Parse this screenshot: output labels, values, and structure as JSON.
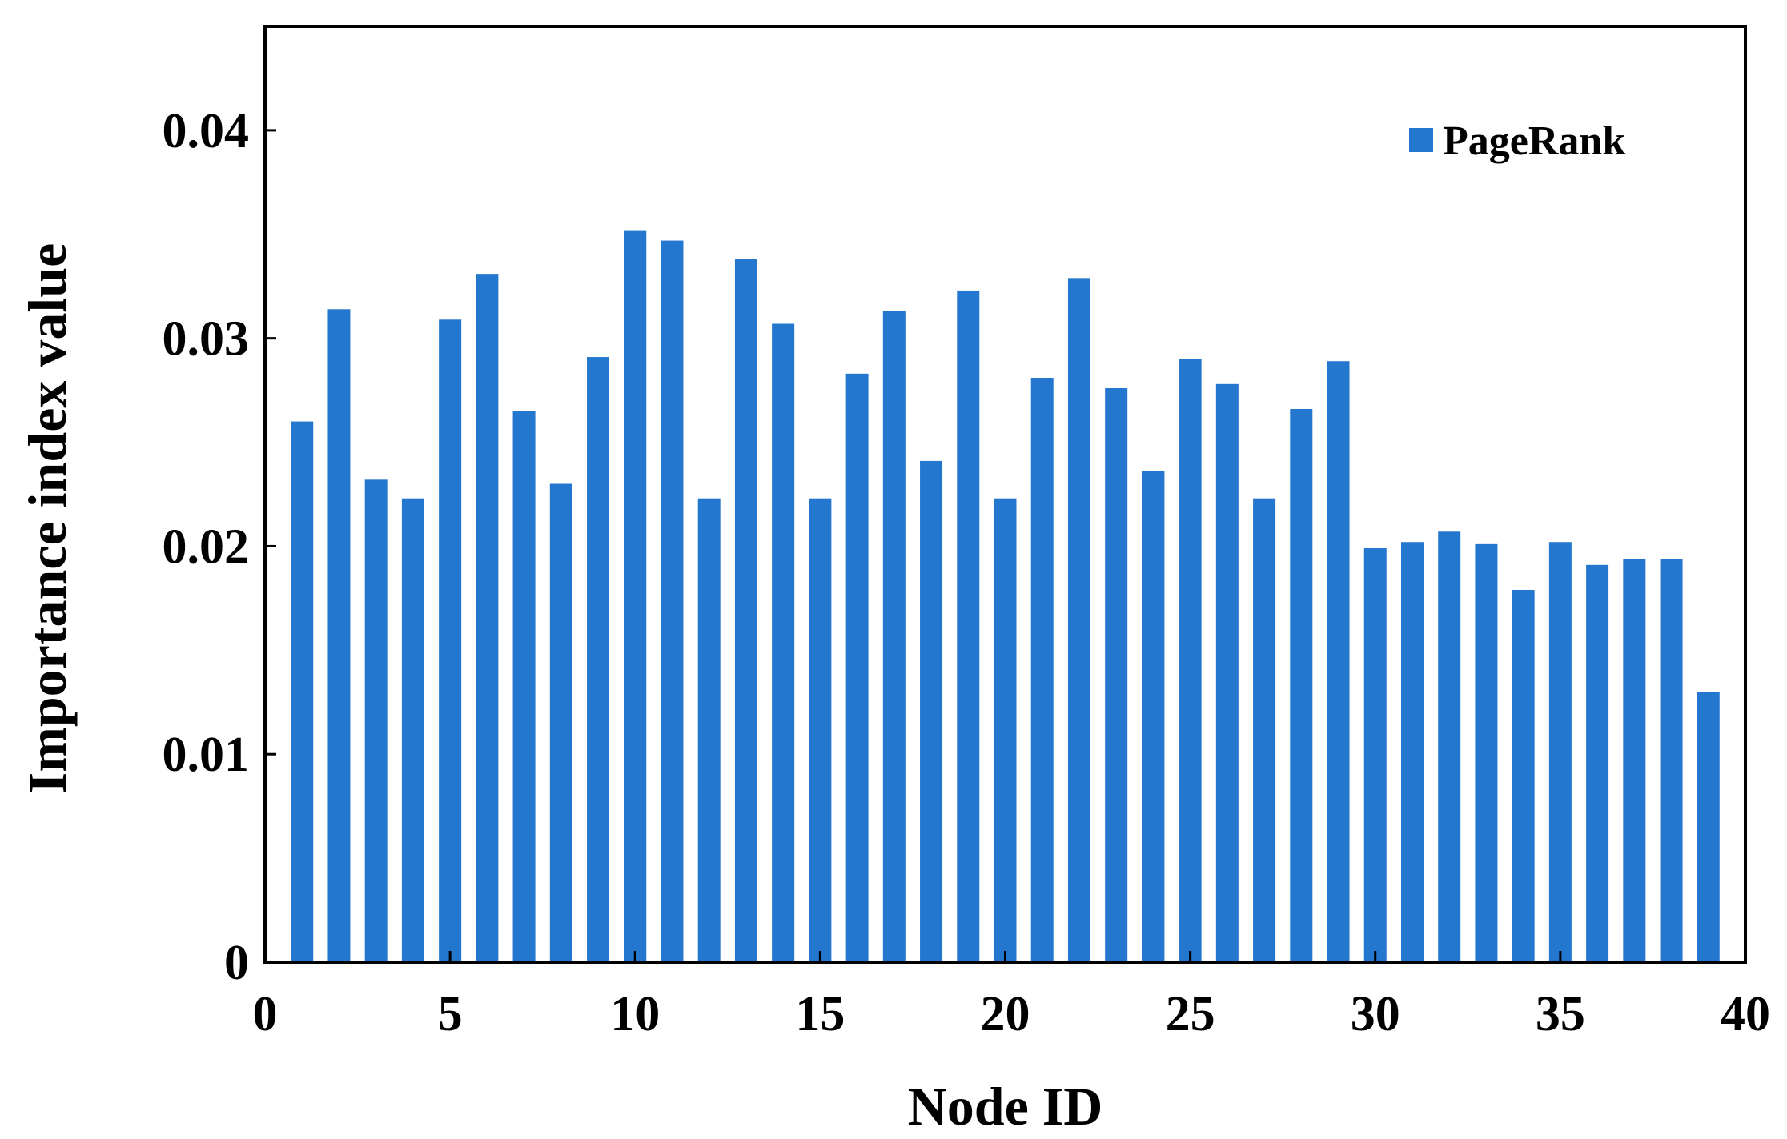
{
  "chart_data": {
    "type": "bar",
    "xlabel": "Node ID",
    "ylabel": "Importance index value",
    "xlim": [
      0,
      40
    ],
    "ylim": [
      0,
      0.045
    ],
    "xticks": [
      0,
      5,
      10,
      15,
      20,
      25,
      30,
      35,
      40
    ],
    "xtick_labels": [
      "0",
      "5",
      "10",
      "15",
      "20",
      "25",
      "30",
      "35",
      "40"
    ],
    "yticks": [
      0,
      0.01,
      0.02,
      0.03,
      0.04
    ],
    "ytick_labels": [
      "0",
      "0.01",
      "0.02",
      "0.03",
      "0.04"
    ],
    "grid": false,
    "legend_position": "top-right",
    "x": [
      1,
      2,
      3,
      4,
      5,
      6,
      7,
      8,
      9,
      10,
      11,
      12,
      13,
      14,
      15,
      16,
      17,
      18,
      19,
      20,
      21,
      22,
      23,
      24,
      25,
      26,
      27,
      28,
      29,
      30,
      31,
      32,
      33,
      34,
      35,
      36,
      37,
      38,
      39
    ],
    "series": [
      {
        "name": "PageRank",
        "color": "#2477CE",
        "values": [
          0.026,
          0.0314,
          0.0232,
          0.0223,
          0.0309,
          0.0331,
          0.0265,
          0.023,
          0.0291,
          0.0352,
          0.0347,
          0.0223,
          0.0338,
          0.0307,
          0.0223,
          0.0283,
          0.0313,
          0.0241,
          0.0323,
          0.0223,
          0.0281,
          0.0329,
          0.0276,
          0.0236,
          0.029,
          0.0278,
          0.0223,
          0.0266,
          0.0289,
          0.0199,
          0.0202,
          0.0207,
          0.0201,
          0.0179,
          0.0202,
          0.0191,
          0.0194,
          0.0194,
          0.013
        ]
      }
    ]
  }
}
